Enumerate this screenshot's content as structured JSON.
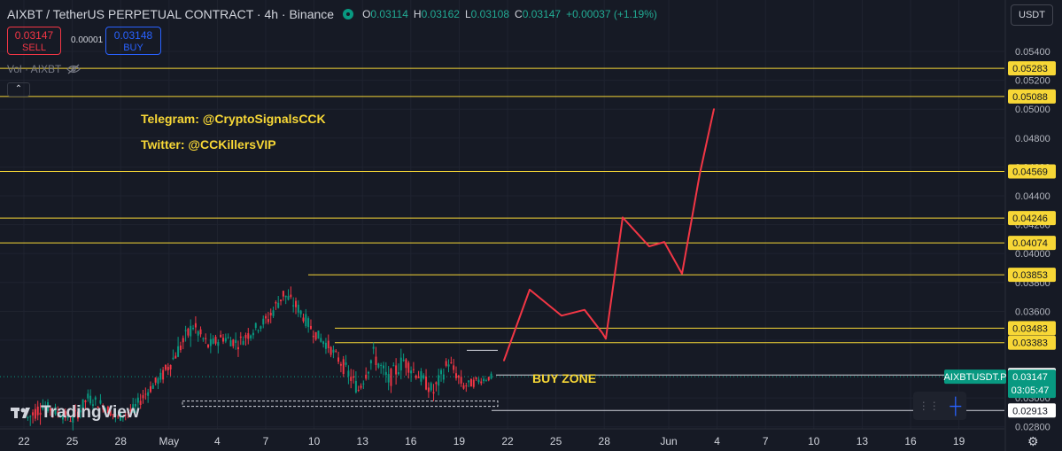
{
  "header": {
    "title": "AIXBT / TetherUS PERPETUAL CONTRACT · 4h · Binance",
    "ohlc": [
      {
        "k": "O",
        "v": "0.03114"
      },
      {
        "k": "H",
        "v": "0.03162"
      },
      {
        "k": "L",
        "v": "0.03108"
      },
      {
        "k": "C",
        "v": "0.03147"
      },
      {
        "k": "",
        "v": "+0.00037 (+1.19%)"
      }
    ]
  },
  "trade": {
    "sell_price": "0.03147",
    "sell_label": "SELL",
    "spread": "0.00001",
    "buy_price": "0.03148",
    "buy_label": "BUY"
  },
  "volume_label": "Vol · AIXBT",
  "collapse_glyph": "⌃",
  "notes": {
    "telegram": "Telegram: @CryptoSignalsCCK",
    "twitter": "Twitter: @CCKillersVIP",
    "buy_zone": "BUY ZONE"
  },
  "currency": "USDT",
  "watermark": "TradingView",
  "settings_icon": "gear-icon",
  "colors": {
    "background": "#161a25",
    "up": "#089981",
    "down": "#f23645",
    "level_line": "#f7d736",
    "forecast": "#f23645",
    "accent": "#2962ff"
  },
  "chart_data": {
    "type": "candlestick",
    "y_axis_ticks": [
      0.028,
      0.03,
      0.034,
      0.036,
      0.038,
      0.04,
      0.042,
      0.044,
      0.046,
      0.048,
      0.05,
      0.052,
      0.054
    ],
    "x_axis_ticks": [
      "22",
      "25",
      "28",
      "May",
      "4",
      "7",
      "10",
      "13",
      "16",
      "19",
      "22",
      "25",
      "28",
      "Jun",
      "4",
      "7",
      "10",
      "13",
      "16",
      "19"
    ],
    "levels": [
      {
        "price": 0.05283,
        "label": "0.05283"
      },
      {
        "price": 0.05088,
        "label": "0.05088"
      },
      {
        "price": 0.04569,
        "label": "0.04569"
      },
      {
        "price": 0.04246,
        "label": "0.04246"
      },
      {
        "price": 0.04074,
        "label": "0.04074"
      },
      {
        "price": 0.03853,
        "label": "0.03853"
      },
      {
        "price": 0.03483,
        "label": "0.03483"
      },
      {
        "price": 0.03383,
        "label": "0.03383"
      }
    ],
    "white_levels": [
      {
        "price": 0.03159,
        "label": "0.03159"
      },
      {
        "price": 0.02913,
        "label": "0.02913"
      }
    ],
    "last_price": {
      "symbol": "AIXBTUSDT.P",
      "price": "0.03147",
      "countdown": "03:05:47"
    },
    "buy_zone_support": 0.0296,
    "forecast_path": [
      [
        0.0316,
        0.0326
      ],
      [
        0.0326,
        0.0375
      ],
      [
        0.0337,
        0.0357
      ],
      [
        0.0347,
        0.0361
      ],
      [
        0.0357,
        0.0345
      ],
      [
        0.0369,
        0.0341
      ],
      [
        0.0373,
        0.0425
      ],
      [
        0.0379,
        0.0405
      ],
      [
        0.0385,
        0.0408
      ],
      [
        0.0391,
        0.0386
      ],
      [
        0.0396,
        0.0455
      ],
      [
        0.0402,
        0.05
      ]
    ],
    "candles_approx": [
      [
        0.0286,
        0.0302,
        0.027,
        0.0295
      ],
      [
        0.0295,
        0.0303,
        0.0282,
        0.029
      ],
      [
        0.029,
        0.0298,
        0.0278,
        0.0285
      ],
      [
        0.0285,
        0.0305,
        0.028,
        0.03
      ],
      [
        0.03,
        0.0312,
        0.029,
        0.0295
      ],
      [
        0.0295,
        0.0301,
        0.0282,
        0.0286
      ],
      [
        0.0286,
        0.0296,
        0.0278,
        0.0292
      ],
      [
        0.0292,
        0.031,
        0.0288,
        0.0305
      ],
      [
        0.0305,
        0.0322,
        0.03,
        0.0316
      ],
      [
        0.0316,
        0.0338,
        0.031,
        0.0333
      ],
      [
        0.0333,
        0.036,
        0.0326,
        0.035
      ],
      [
        0.035,
        0.0357,
        0.033,
        0.0336
      ],
      [
        0.0336,
        0.0349,
        0.0325,
        0.0342
      ],
      [
        0.0342,
        0.0356,
        0.0332,
        0.0338
      ],
      [
        0.0338,
        0.0352,
        0.0328,
        0.0347
      ],
      [
        0.0347,
        0.0362,
        0.034,
        0.0355
      ],
      [
        0.0355,
        0.0378,
        0.035,
        0.0372
      ],
      [
        0.0372,
        0.0385,
        0.0358,
        0.0362
      ],
      [
        0.0362,
        0.0366,
        0.0342,
        0.0346
      ],
      [
        0.0346,
        0.0352,
        0.033,
        0.0336
      ],
      [
        0.0336,
        0.034,
        0.0318,
        0.0322
      ],
      [
        0.0322,
        0.033,
        0.03,
        0.0306
      ],
      [
        0.0306,
        0.0335,
        0.0302,
        0.033
      ],
      [
        0.033,
        0.0338,
        0.0305,
        0.0312
      ],
      [
        0.0312,
        0.0334,
        0.03,
        0.0326
      ],
      [
        0.0326,
        0.0339,
        0.031,
        0.0316
      ],
      [
        0.0316,
        0.0326,
        0.0298,
        0.0304
      ],
      [
        0.0304,
        0.033,
        0.0299,
        0.0325
      ],
      [
        0.0325,
        0.0328,
        0.0303,
        0.0308
      ],
      [
        0.0308,
        0.0318,
        0.03,
        0.0312
      ],
      [
        0.0312,
        0.032,
        0.0306,
        0.0315
      ]
    ]
  }
}
